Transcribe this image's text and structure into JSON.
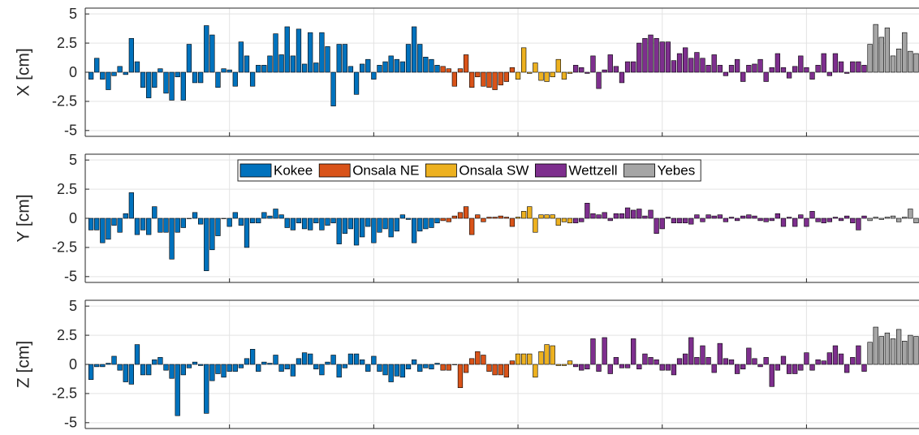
{
  "chart_data": [
    {
      "type": "bar",
      "ylabel": "X [cm]",
      "xlim": [
        0,
        144.5
      ],
      "xticks": [
        0,
        25,
        50,
        75,
        100,
        125
      ],
      "ylim": [
        -5.5,
        5.5
      ],
      "yticks": [
        5,
        2.5,
        0,
        -2.5,
        -5
      ],
      "grid": true,
      "series": [
        {
          "color": "#0072bd",
          "x": [
            1,
            2,
            3,
            4,
            5,
            6,
            7,
            8,
            9,
            10,
            11,
            12,
            13,
            14,
            15,
            16,
            17,
            18,
            19,
            20,
            21,
            22,
            23,
            24,
            25,
            26,
            27,
            28,
            29,
            30,
            31,
            32,
            33,
            34,
            35,
            36,
            37,
            38,
            39,
            40,
            41,
            42,
            43,
            44,
            45,
            46,
            47,
            48,
            49,
            50,
            51,
            52,
            53,
            54,
            55,
            56,
            57,
            58,
            59,
            60,
            61
          ],
          "values": [
            -0.6,
            1.2,
            -0.6,
            -1.5,
            -0.3,
            0.5,
            -0.2,
            2.9,
            0.9,
            -1.3,
            -2.2,
            -1.3,
            0.3,
            -1.8,
            -2.4,
            -0.4,
            -2.4,
            2.4,
            -0.9,
            -0.9,
            4.0,
            3.2,
            -1.3,
            0.3,
            0.2,
            -1.2,
            2.6,
            1.4,
            -1.2,
            0.6,
            0.6,
            1.4,
            3.3,
            1.5,
            3.9,
            1.4,
            3.7,
            0.7,
            3.4,
            0.8,
            3.4,
            2.2,
            -2.9,
            2.4,
            2.4,
            0.5,
            -1.9,
            0.7,
            1.1,
            -0.6,
            0.6,
            0.9,
            1.4,
            1.1,
            0.9,
            2.4,
            3.9,
            2.4,
            1.3,
            1.1,
            0.6
          ]
        },
        {
          "color": "#d95319",
          "x": [
            62,
            63,
            64,
            65,
            66,
            67,
            68,
            69,
            70,
            71,
            72,
            73,
            74
          ],
          "values": [
            0.5,
            0.3,
            -1.2,
            0.3,
            1.5,
            -1.3,
            -0.4,
            -1.2,
            -1.3,
            -1.5,
            -1.1,
            -0.8,
            0.4
          ]
        },
        {
          "color": "#edb120",
          "x": [
            75,
            76,
            77,
            78,
            79,
            80,
            81,
            82,
            83,
            84
          ],
          "values": [
            -0.6,
            2.1,
            -0.1,
            0.8,
            -0.7,
            -0.8,
            -0.4,
            1.1,
            -0.6,
            -0.1
          ]
        },
        {
          "color": "#7e2f8e",
          "x": [
            85,
            86,
            87,
            88,
            89,
            90,
            91,
            92,
            93,
            94,
            95,
            96,
            97,
            98,
            99,
            100,
            101,
            102,
            103,
            104,
            105,
            106,
            107,
            108,
            109,
            110,
            111,
            112,
            113,
            114,
            115,
            116,
            117,
            118,
            119,
            120,
            121,
            122,
            123,
            124,
            125,
            126,
            127,
            128,
            129,
            130,
            131,
            132,
            133,
            134,
            135
          ],
          "values": [
            0.6,
            0.4,
            -0.1,
            1.4,
            -1.4,
            0.2,
            1.5,
            0.5,
            -0.9,
            0.9,
            0.9,
            2.5,
            2.9,
            3.2,
            2.9,
            2.6,
            2.6,
            1.0,
            1.6,
            2.1,
            1.2,
            1.7,
            1.2,
            0.6,
            1.5,
            0.6,
            -0.3,
            0.6,
            1.1,
            -0.8,
            0.6,
            0.7,
            1.1,
            -0.8,
            0.4,
            1.6,
            0.4,
            -0.5,
            0.5,
            1.4,
            0.4,
            -0.6,
            0.6,
            1.6,
            -0.3,
            1.6,
            0.9,
            -0.1,
            0.9,
            0.9,
            0.6
          ]
        },
        {
          "color": "#a5a5a5",
          "x": [
            136,
            137,
            138,
            139,
            140,
            141,
            142,
            143,
            144
          ],
          "values": [
            2.4,
            4.1,
            3.0,
            3.8,
            1.4,
            2.0,
            3.4,
            1.8,
            1.6
          ]
        }
      ]
    },
    {
      "type": "bar",
      "ylabel": "Y [cm]",
      "xlim": [
        0,
        144.5
      ],
      "xticks": [
        0,
        25,
        50,
        75,
        100,
        125
      ],
      "ylim": [
        -5.5,
        5.5
      ],
      "yticks": [
        5,
        2.5,
        0,
        -2.5,
        -5
      ],
      "grid": true,
      "series": [
        {
          "name": "Kokee",
          "color": "#0072bd",
          "x": [
            1,
            2,
            3,
            4,
            5,
            6,
            7,
            8,
            9,
            10,
            11,
            12,
            13,
            14,
            15,
            16,
            17,
            18,
            19,
            20,
            21,
            22,
            23,
            24,
            25,
            26,
            27,
            28,
            29,
            30,
            31,
            32,
            33,
            34,
            35,
            36,
            37,
            38,
            39,
            40,
            41,
            42,
            43,
            44,
            45,
            46,
            47,
            48,
            49,
            50,
            51,
            52,
            53,
            54,
            55,
            56,
            57,
            58,
            59,
            60,
            61
          ],
          "values": [
            -1.0,
            -1.0,
            -2.1,
            -1.8,
            -0.6,
            -1.2,
            0.4,
            2.2,
            -1.4,
            -1.0,
            -1.4,
            1.0,
            -1.2,
            -1.2,
            -3.5,
            -1.2,
            -0.8,
            0,
            0.5,
            -0.5,
            -4.5,
            -2.7,
            -1.5,
            0,
            -0.7,
            0.5,
            -0.6,
            -2.5,
            -0.4,
            -0.4,
            0.5,
            0.2,
            0.8,
            0.3,
            -0.8,
            -1.0,
            -0.4,
            -0.9,
            -1.0,
            -0.4,
            -1.0,
            -0.6,
            -0.4,
            -2.2,
            -1.3,
            -0.9,
            -2.3,
            -1.6,
            -0.7,
            -2.1,
            -1.2,
            -0.9,
            -1.6,
            -1.1,
            0.3,
            -0.1,
            -2.1,
            -1.1,
            -0.9,
            -0.8,
            -0.4
          ]
        },
        {
          "name": "Onsala NE",
          "color": "#d95319",
          "x": [
            62,
            63,
            64,
            65,
            66,
            67,
            68,
            69,
            70,
            71,
            72,
            73,
            74
          ],
          "values": [
            -0.2,
            -0.3,
            0.2,
            0.5,
            1.0,
            -1.4,
            0.3,
            -0.3,
            0.1,
            0.1,
            0.2,
            0.1,
            -0.7
          ]
        },
        {
          "name": "Onsala SW",
          "color": "#edb120",
          "x": [
            75,
            76,
            77,
            78,
            79,
            80,
            81,
            82,
            83,
            84
          ],
          "values": [
            0.1,
            0.6,
            1.0,
            -1.2,
            0.3,
            0.3,
            0.3,
            -0.6,
            -0.3,
            -0.4
          ]
        },
        {
          "name": "Wettzell",
          "color": "#7e2f8e",
          "x": [
            85,
            86,
            87,
            88,
            89,
            90,
            91,
            92,
            93,
            94,
            95,
            96,
            97,
            98,
            99,
            100,
            101,
            102,
            103,
            104,
            105,
            106,
            107,
            108,
            109,
            110,
            111,
            112,
            113,
            114,
            115,
            116,
            117,
            118,
            119,
            120,
            121,
            122,
            123,
            124,
            125,
            126,
            127,
            128,
            129,
            130,
            131,
            132,
            133,
            134,
            135
          ],
          "values": [
            -0.4,
            -0.3,
            1.3,
            0.4,
            0.3,
            0.5,
            -0.2,
            0.4,
            0.4,
            0.9,
            0.7,
            0.8,
            0.2,
            0.7,
            -1.3,
            -0.9,
            0.1,
            -0.4,
            -0.4,
            -0.4,
            -0.5,
            0.3,
            -0.3,
            0.3,
            0.2,
            0.3,
            -0.3,
            0.1,
            -0.2,
            0.2,
            0.3,
            0.2,
            -0.2,
            -0.3,
            -0.2,
            0.4,
            -0.7,
            0.1,
            -0.7,
            0.3,
            -0.7,
            0.6,
            -0.3,
            -0.4,
            -0.3,
            0.1,
            -0.2,
            0.2,
            -0.4,
            -1.0,
            0.2
          ]
        },
        {
          "name": "Yebes",
          "color": "#a5a5a5",
          "x": [
            136,
            137,
            138,
            139,
            140,
            141,
            142,
            143,
            144
          ],
          "values": [
            -0.2,
            0.1,
            -0.1,
            0.1,
            0.2,
            -0.3,
            0.1,
            0.8,
            -0.4
          ]
        }
      ]
    },
    {
      "type": "bar",
      "ylabel": "Z [cm]",
      "xlim": [
        0,
        144.5
      ],
      "xticks": [
        0,
        25,
        50,
        75,
        100,
        125
      ],
      "ylim": [
        -5.5,
        5.5
      ],
      "yticks": [
        5,
        2.5,
        0,
        -2.5,
        -5
      ],
      "grid": true,
      "series": [
        {
          "color": "#0072bd",
          "x": [
            1,
            2,
            3,
            4,
            5,
            6,
            7,
            8,
            9,
            10,
            11,
            12,
            13,
            14,
            15,
            16,
            17,
            18,
            19,
            20,
            21,
            22,
            23,
            24,
            25,
            26,
            27,
            28,
            29,
            30,
            31,
            32,
            33,
            34,
            35,
            36,
            37,
            38,
            39,
            40,
            41,
            42,
            43,
            44,
            45,
            46,
            47,
            48,
            49,
            50,
            51,
            52,
            53,
            54,
            55,
            56,
            57,
            58,
            59,
            60,
            61
          ],
          "values": [
            -1.3,
            -0.2,
            -0.2,
            0.1,
            0.7,
            -0.5,
            -1.5,
            -1.7,
            1.7,
            -0.9,
            -0.9,
            0.4,
            0.6,
            -0.5,
            -1.2,
            -4.4,
            -0.9,
            -0.3,
            0.2,
            -0.1,
            -4.2,
            -1.4,
            -0.8,
            -1.1,
            -0.6,
            -0.6,
            -0.3,
            0.5,
            1.3,
            -0.6,
            0.2,
            0.1,
            0.8,
            -0.6,
            -0.4,
            -1.0,
            0.5,
            1.0,
            0.9,
            -0.4,
            -0.9,
            0.2,
            0.8,
            -1.1,
            -0.3,
            0.9,
            0.9,
            0.4,
            -0.6,
            0.7,
            -0.6,
            -0.9,
            -1.5,
            -1.0,
            -1.1,
            -0.4,
            0.4,
            -0.6,
            -0.3,
            -0.4,
            0.1
          ]
        },
        {
          "color": "#d95319",
          "x": [
            62,
            63,
            64,
            65,
            66,
            67,
            68,
            69,
            70,
            71,
            72,
            73,
            74
          ],
          "values": [
            -0.5,
            -0.5,
            0,
            -2.0,
            -0.7,
            0.5,
            1.1,
            0.8,
            -0.6,
            -0.9,
            -0.9,
            -1.1,
            0.3
          ]
        },
        {
          "color": "#edb120",
          "x": [
            75,
            76,
            77,
            78,
            79,
            80,
            81,
            82,
            83,
            84
          ],
          "values": [
            0.9,
            0.9,
            0.9,
            -1.1,
            1.1,
            1.7,
            1.6,
            -0.1,
            -0.1,
            0.3
          ]
        },
        {
          "color": "#7e2f8e",
          "x": [
            85,
            86,
            87,
            88,
            89,
            90,
            91,
            92,
            93,
            94,
            95,
            96,
            97,
            98,
            99,
            100,
            101,
            102,
            103,
            104,
            105,
            106,
            107,
            108,
            109,
            110,
            111,
            112,
            113,
            114,
            115,
            116,
            117,
            118,
            119,
            120,
            121,
            122,
            123,
            124,
            125,
            126,
            127,
            128,
            129,
            130,
            131,
            132,
            133,
            134,
            135
          ],
          "values": [
            -0.2,
            -0.5,
            -0.4,
            2.2,
            -0.6,
            2.3,
            -0.8,
            0.6,
            -0.3,
            -0.3,
            2.2,
            -0.4,
            0.9,
            0.6,
            0.4,
            -0.5,
            -0.5,
            -0.9,
            0.5,
            0.9,
            2.3,
            0.6,
            1.6,
            0.6,
            -0.7,
            1.8,
            0.5,
            0.4,
            -0.8,
            -0.4,
            1.4,
            0.5,
            -0.2,
            0.6,
            -1.9,
            -0.5,
            0.7,
            -0.8,
            -0.8,
            -0.5,
            1.0,
            -0.5,
            0.4,
            0.3,
            1.0,
            1.6,
            0.9,
            -0.7,
            0.6,
            1.6,
            -0.6
          ]
        },
        {
          "color": "#a5a5a5",
          "x": [
            136,
            137,
            138,
            139,
            140,
            141,
            142,
            143,
            144
          ],
          "values": [
            1.9,
            3.2,
            2.4,
            2.7,
            2.2,
            3.0,
            2.0,
            2.5,
            2.4
          ]
        }
      ]
    }
  ]
}
